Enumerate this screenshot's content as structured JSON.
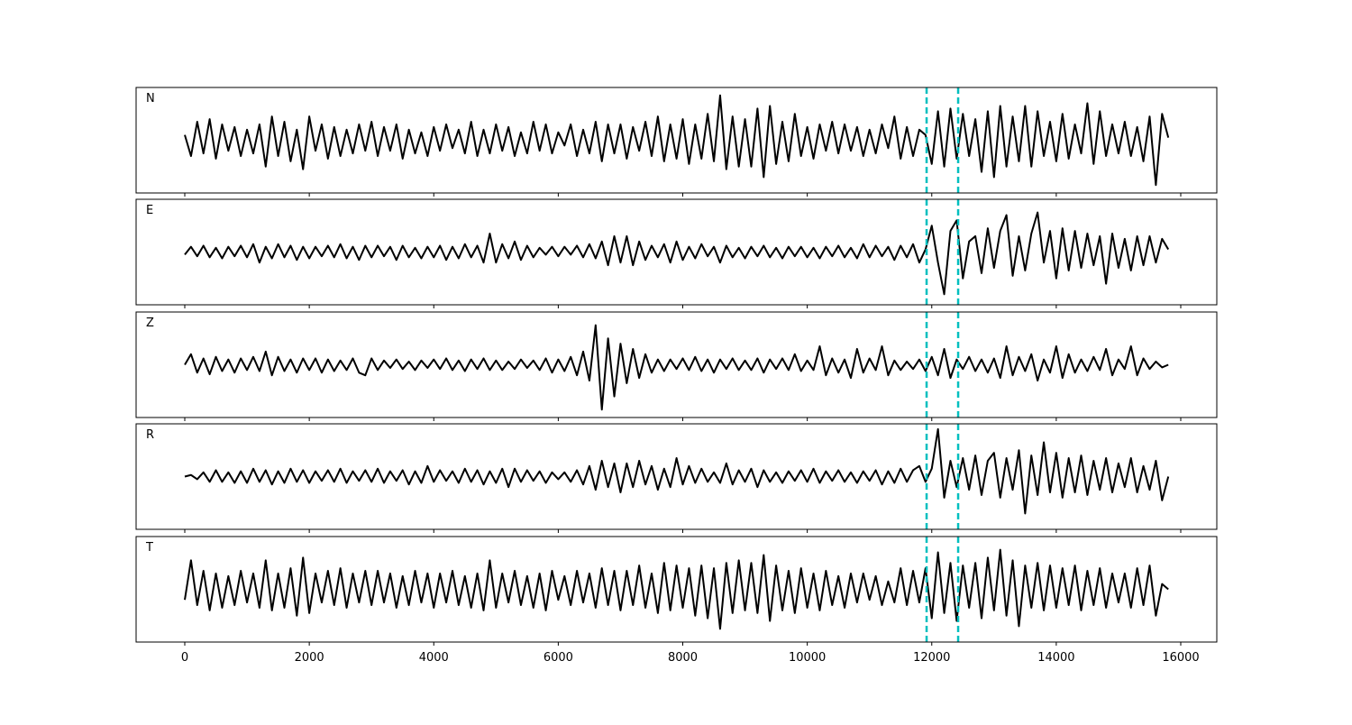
{
  "chart_data": {
    "type": "line",
    "layout": "stacked-panels",
    "x": [
      0,
      100,
      200,
      300,
      400,
      500,
      600,
      700,
      800,
      900,
      1000,
      1100,
      1200,
      1300,
      1400,
      1500,
      1600,
      1700,
      1800,
      1900,
      2000,
      2100,
      2200,
      2300,
      2400,
      2500,
      2600,
      2700,
      2800,
      2900,
      3000,
      3100,
      3200,
      3300,
      3400,
      3500,
      3600,
      3700,
      3800,
      3900,
      4000,
      4100,
      4200,
      4300,
      4400,
      4500,
      4600,
      4700,
      4800,
      4900,
      5000,
      5100,
      5200,
      5300,
      5400,
      5500,
      5600,
      5700,
      5800,
      5900,
      6000,
      6100,
      6200,
      6300,
      6400,
      6500,
      6600,
      6700,
      6800,
      6900,
      7000,
      7100,
      7200,
      7300,
      7400,
      7500,
      7600,
      7700,
      7800,
      7900,
      8000,
      8100,
      8200,
      8300,
      8400,
      8500,
      8600,
      8700,
      8800,
      8900,
      9000,
      9100,
      9200,
      9300,
      9400,
      9500,
      9600,
      9700,
      9800,
      9900,
      10000,
      10100,
      10200,
      10300,
      10400,
      10500,
      10600,
      10700,
      10800,
      10900,
      11000,
      11100,
      11200,
      11300,
      11400,
      11500,
      11600,
      11700,
      11800,
      11900,
      12000,
      12100,
      12200,
      12300,
      12400,
      12500,
      12600,
      12700,
      12800,
      12900,
      13000,
      13100,
      13200,
      13300,
      13400,
      13500,
      13600,
      13700,
      13800,
      13900,
      14000,
      14100,
      14200,
      14300,
      14400,
      14500,
      14600,
      14700,
      14800,
      14900,
      15000,
      15100,
      15200,
      15300,
      15400,
      15500,
      15600,
      15700,
      15800
    ],
    "series": [
      {
        "name": "N",
        "color": "#000000",
        "values": [
          0.1,
          -0.3,
          0.35,
          -0.25,
          0.4,
          -0.35,
          0.3,
          -0.2,
          0.25,
          -0.3,
          0.2,
          -0.25,
          0.3,
          -0.5,
          0.45,
          -0.3,
          0.35,
          -0.4,
          0.2,
          -0.55,
          0.45,
          -0.2,
          0.3,
          -0.35,
          0.25,
          -0.3,
          0.2,
          -0.25,
          0.3,
          -0.2,
          0.35,
          -0.3,
          0.25,
          -0.2,
          0.3,
          -0.35,
          0.2,
          -0.25,
          0.15,
          -0.3,
          0.25,
          -0.2,
          0.3,
          -0.15,
          0.2,
          -0.25,
          0.35,
          -0.3,
          0.2,
          -0.25,
          0.3,
          -0.2,
          0.25,
          -0.3,
          0.15,
          -0.25,
          0.35,
          -0.2,
          0.3,
          -0.25,
          0.15,
          -0.1,
          0.3,
          -0.3,
          0.2,
          -0.25,
          0.35,
          -0.4,
          0.3,
          -0.25,
          0.3,
          -0.35,
          0.25,
          -0.2,
          0.35,
          -0.3,
          0.45,
          -0.4,
          0.3,
          -0.35,
          0.4,
          -0.45,
          0.3,
          -0.35,
          0.5,
          -0.4,
          0.85,
          -0.55,
          0.45,
          -0.5,
          0.4,
          -0.5,
          0.6,
          -0.7,
          0.65,
          -0.45,
          0.35,
          -0.4,
          0.5,
          -0.3,
          0.25,
          -0.35,
          0.3,
          -0.2,
          0.35,
          -0.25,
          0.3,
          -0.2,
          0.25,
          -0.3,
          0.2,
          -0.25,
          0.3,
          -0.15,
          0.45,
          -0.35,
          0.25,
          -0.3,
          0.2,
          0.1,
          -0.45,
          0.55,
          -0.5,
          0.6,
          -0.35,
          0.5,
          -0.3,
          0.4,
          -0.6,
          0.55,
          -0.7,
          0.65,
          -0.5,
          0.45,
          -0.4,
          0.65,
          -0.5,
          0.55,
          -0.3,
          0.35,
          -0.4,
          0.5,
          -0.35,
          0.3,
          -0.25,
          0.7,
          -0.45,
          0.55,
          -0.3,
          0.3,
          -0.25,
          0.35,
          -0.3,
          0.25,
          -0.4,
          0.45,
          -0.85,
          0.5,
          0.05
        ]
      },
      {
        "name": "E",
        "color": "#000000",
        "values": [
          -0.05,
          0.1,
          -0.08,
          0.12,
          -0.1,
          0.08,
          -0.12,
          0.1,
          -0.08,
          0.12,
          -0.1,
          0.15,
          -0.2,
          0.1,
          -0.12,
          0.15,
          -0.1,
          0.12,
          -0.15,
          0.1,
          -0.12,
          0.1,
          -0.08,
          0.12,
          -0.1,
          0.15,
          -0.12,
          0.1,
          -0.15,
          0.12,
          -0.1,
          0.12,
          -0.08,
          0.1,
          -0.15,
          0.12,
          -0.1,
          0.08,
          -0.12,
          0.1,
          -0.1,
          0.12,
          -0.15,
          0.1,
          -0.12,
          0.15,
          -0.1,
          0.12,
          -0.2,
          0.35,
          -0.2,
          0.15,
          -0.12,
          0.2,
          -0.15,
          0.12,
          -0.1,
          0.08,
          -0.05,
          0.1,
          -0.08,
          0.1,
          -0.05,
          0.12,
          -0.1,
          0.15,
          -0.12,
          0.2,
          -0.25,
          0.3,
          -0.2,
          0.3,
          -0.25,
          0.2,
          -0.15,
          0.12,
          -0.1,
          0.15,
          -0.2,
          0.2,
          -0.15,
          0.1,
          -0.12,
          0.15,
          -0.08,
          0.1,
          -0.2,
          0.12,
          -0.1,
          0.08,
          -0.12,
          0.1,
          -0.08,
          0.12,
          -0.1,
          0.08,
          -0.12,
          0.1,
          -0.08,
          0.1,
          -0.1,
          0.08,
          -0.12,
          0.1,
          -0.08,
          0.12,
          -0.1,
          0.08,
          -0.12,
          0.15,
          -0.1,
          0.12,
          -0.08,
          0.1,
          -0.15,
          0.12,
          -0.1,
          0.15,
          -0.2,
          0.05,
          0.5,
          -0.2,
          -0.8,
          0.4,
          0.6,
          -0.5,
          0.2,
          0.3,
          -0.4,
          0.45,
          -0.3,
          0.4,
          0.7,
          -0.45,
          0.3,
          -0.35,
          0.35,
          0.75,
          -0.2,
          0.4,
          -0.5,
          0.45,
          -0.35,
          0.4,
          -0.3,
          0.35,
          -0.25,
          0.3,
          -0.6,
          0.35,
          -0.3,
          0.25,
          -0.35,
          0.3,
          -0.25,
          0.3,
          -0.2,
          0.25,
          0.05
        ]
      },
      {
        "name": "Z",
        "color": "#000000",
        "values": [
          0.0,
          0.2,
          -0.15,
          0.12,
          -0.18,
          0.15,
          -0.12,
          0.1,
          -0.15,
          0.12,
          -0.1,
          0.15,
          -0.12,
          0.25,
          -0.2,
          0.15,
          -0.12,
          0.1,
          -0.15,
          0.12,
          -0.1,
          0.12,
          -0.15,
          0.1,
          -0.12,
          0.08,
          -0.1,
          0.12,
          -0.15,
          -0.2,
          0.12,
          -0.1,
          0.08,
          -0.06,
          0.1,
          -0.08,
          0.06,
          -0.1,
          0.08,
          -0.06,
          0.1,
          -0.08,
          0.12,
          -0.1,
          0.08,
          -0.12,
          0.1,
          -0.08,
          0.12,
          -0.1,
          0.08,
          -0.1,
          0.06,
          -0.08,
          0.1,
          -0.06,
          0.08,
          -0.1,
          0.12,
          -0.15,
          0.1,
          -0.12,
          0.15,
          -0.2,
          0.25,
          -0.3,
          0.75,
          -0.85,
          0.5,
          -0.6,
          0.4,
          -0.35,
          0.3,
          -0.25,
          0.2,
          -0.15,
          0.1,
          -0.12,
          0.1,
          -0.08,
          0.12,
          -0.1,
          0.15,
          -0.12,
          0.1,
          -0.15,
          0.1,
          -0.08,
          0.12,
          -0.1,
          0.08,
          -0.1,
          0.12,
          -0.15,
          0.1,
          -0.08,
          0.12,
          -0.1,
          0.2,
          -0.12,
          0.08,
          -0.1,
          0.35,
          -0.2,
          0.12,
          -0.15,
          0.1,
          -0.25,
          0.3,
          -0.15,
          0.12,
          -0.1,
          0.35,
          -0.2,
          0.08,
          -0.1,
          0.06,
          -0.08,
          0.1,
          -0.12,
          0.15,
          -0.2,
          0.3,
          -0.25,
          0.1,
          -0.08,
          0.15,
          -0.12,
          0.1,
          -0.15,
          0.12,
          -0.25,
          0.35,
          -0.2,
          0.15,
          -0.12,
          0.2,
          -0.3,
          0.1,
          -0.15,
          0.35,
          -0.25,
          0.2,
          -0.15,
          0.1,
          -0.12,
          0.15,
          -0.1,
          0.3,
          -0.2,
          0.1,
          -0.08,
          0.35,
          -0.2,
          0.12,
          -0.08,
          0.06,
          -0.05,
          0.0
        ]
      },
      {
        "name": "R",
        "color": "#000000",
        "values": [
          0.0,
          0.03,
          -0.05,
          0.08,
          -0.1,
          0.12,
          -0.1,
          0.08,
          -0.12,
          0.1,
          -0.12,
          0.15,
          -0.1,
          0.12,
          -0.15,
          0.1,
          -0.12,
          0.15,
          -0.1,
          0.12,
          -0.12,
          0.1,
          -0.08,
          0.12,
          -0.1,
          0.15,
          -0.12,
          0.1,
          -0.08,
          0.12,
          -0.1,
          0.15,
          -0.12,
          0.1,
          -0.08,
          0.12,
          -0.15,
          0.1,
          -0.12,
          0.2,
          -0.1,
          0.12,
          -0.08,
          0.1,
          -0.12,
          0.15,
          -0.1,
          0.12,
          -0.15,
          0.1,
          -0.12,
          0.15,
          -0.2,
          0.15,
          -0.1,
          0.12,
          -0.08,
          0.1,
          -0.12,
          0.08,
          -0.05,
          0.08,
          -0.1,
          0.12,
          -0.15,
          0.2,
          -0.25,
          0.3,
          -0.2,
          0.25,
          -0.3,
          0.25,
          -0.2,
          0.3,
          -0.15,
          0.2,
          -0.25,
          0.15,
          -0.2,
          0.35,
          -0.15,
          0.2,
          -0.12,
          0.15,
          -0.1,
          0.08,
          -0.12,
          0.25,
          -0.15,
          0.12,
          -0.1,
          0.15,
          -0.2,
          0.12,
          -0.1,
          0.08,
          -0.12,
          0.1,
          -0.08,
          0.12,
          -0.1,
          0.15,
          -0.12,
          0.1,
          -0.08,
          0.12,
          -0.1,
          0.08,
          -0.12,
          0.1,
          -0.08,
          0.12,
          -0.15,
          0.1,
          -0.12,
          0.15,
          -0.1,
          0.12,
          0.2,
          -0.1,
          0.15,
          0.9,
          -0.4,
          0.3,
          -0.2,
          0.35,
          -0.25,
          0.4,
          -0.35,
          0.3,
          0.45,
          -0.4,
          0.35,
          -0.25,
          0.5,
          -0.7,
          0.4,
          -0.35,
          0.65,
          -0.3,
          0.45,
          -0.4,
          0.35,
          -0.3,
          0.4,
          -0.35,
          0.3,
          -0.25,
          0.35,
          -0.3,
          0.25,
          -0.2,
          0.35,
          -0.3,
          0.2,
          -0.25,
          0.3,
          -0.45,
          0.0
        ]
      },
      {
        "name": "T",
        "color": "#000000",
        "values": [
          -0.2,
          0.55,
          -0.3,
          0.35,
          -0.4,
          0.3,
          -0.35,
          0.25,
          -0.3,
          0.35,
          -0.25,
          0.3,
          -0.35,
          0.55,
          -0.4,
          0.3,
          -0.35,
          0.4,
          -0.5,
          0.6,
          -0.45,
          0.3,
          -0.25,
          0.35,
          -0.3,
          0.4,
          -0.35,
          0.3,
          -0.25,
          0.35,
          -0.3,
          0.35,
          -0.25,
          0.3,
          -0.35,
          0.25,
          -0.3,
          0.35,
          -0.25,
          0.3,
          -0.35,
          0.3,
          -0.25,
          0.35,
          -0.3,
          0.25,
          -0.35,
          0.3,
          -0.4,
          0.55,
          -0.35,
          0.3,
          -0.25,
          0.35,
          -0.3,
          0.25,
          -0.35,
          0.3,
          -0.4,
          0.35,
          -0.2,
          0.25,
          -0.3,
          0.35,
          -0.25,
          0.3,
          -0.35,
          0.4,
          -0.3,
          0.35,
          -0.4,
          0.35,
          -0.3,
          0.45,
          -0.35,
          0.3,
          -0.45,
          0.5,
          -0.4,
          0.45,
          -0.35,
          0.4,
          -0.5,
          0.45,
          -0.55,
          0.4,
          -0.75,
          0.5,
          -0.45,
          0.55,
          -0.4,
          0.5,
          -0.45,
          0.65,
          -0.6,
          0.45,
          -0.4,
          0.35,
          -0.45,
          0.4,
          -0.35,
          0.3,
          -0.4,
          0.35,
          -0.3,
          0.25,
          -0.35,
          0.3,
          -0.25,
          0.3,
          -0.2,
          0.25,
          -0.3,
          0.15,
          -0.25,
          0.4,
          -0.3,
          0.35,
          -0.25,
          0.4,
          -0.55,
          0.7,
          -0.45,
          0.5,
          -0.6,
          0.45,
          -0.35,
          0.5,
          -0.55,
          0.6,
          -0.4,
          0.75,
          -0.5,
          0.55,
          -0.7,
          0.45,
          -0.35,
          0.5,
          -0.4,
          0.45,
          -0.35,
          0.4,
          -0.3,
          0.45,
          -0.4,
          0.35,
          -0.3,
          0.4,
          -0.35,
          0.3,
          -0.25,
          0.3,
          -0.35,
          0.4,
          -0.3,
          0.45,
          -0.5,
          0.1,
          0.0
        ]
      }
    ],
    "vlines": [
      11917,
      12424
    ],
    "vline_color": "#00bfbf",
    "xlim": [
      -782,
      16579
    ],
    "xticks": [
      0,
      2000,
      4000,
      6000,
      8000,
      10000,
      12000,
      14000,
      16000
    ],
    "ylim": [
      -1,
      1
    ]
  }
}
